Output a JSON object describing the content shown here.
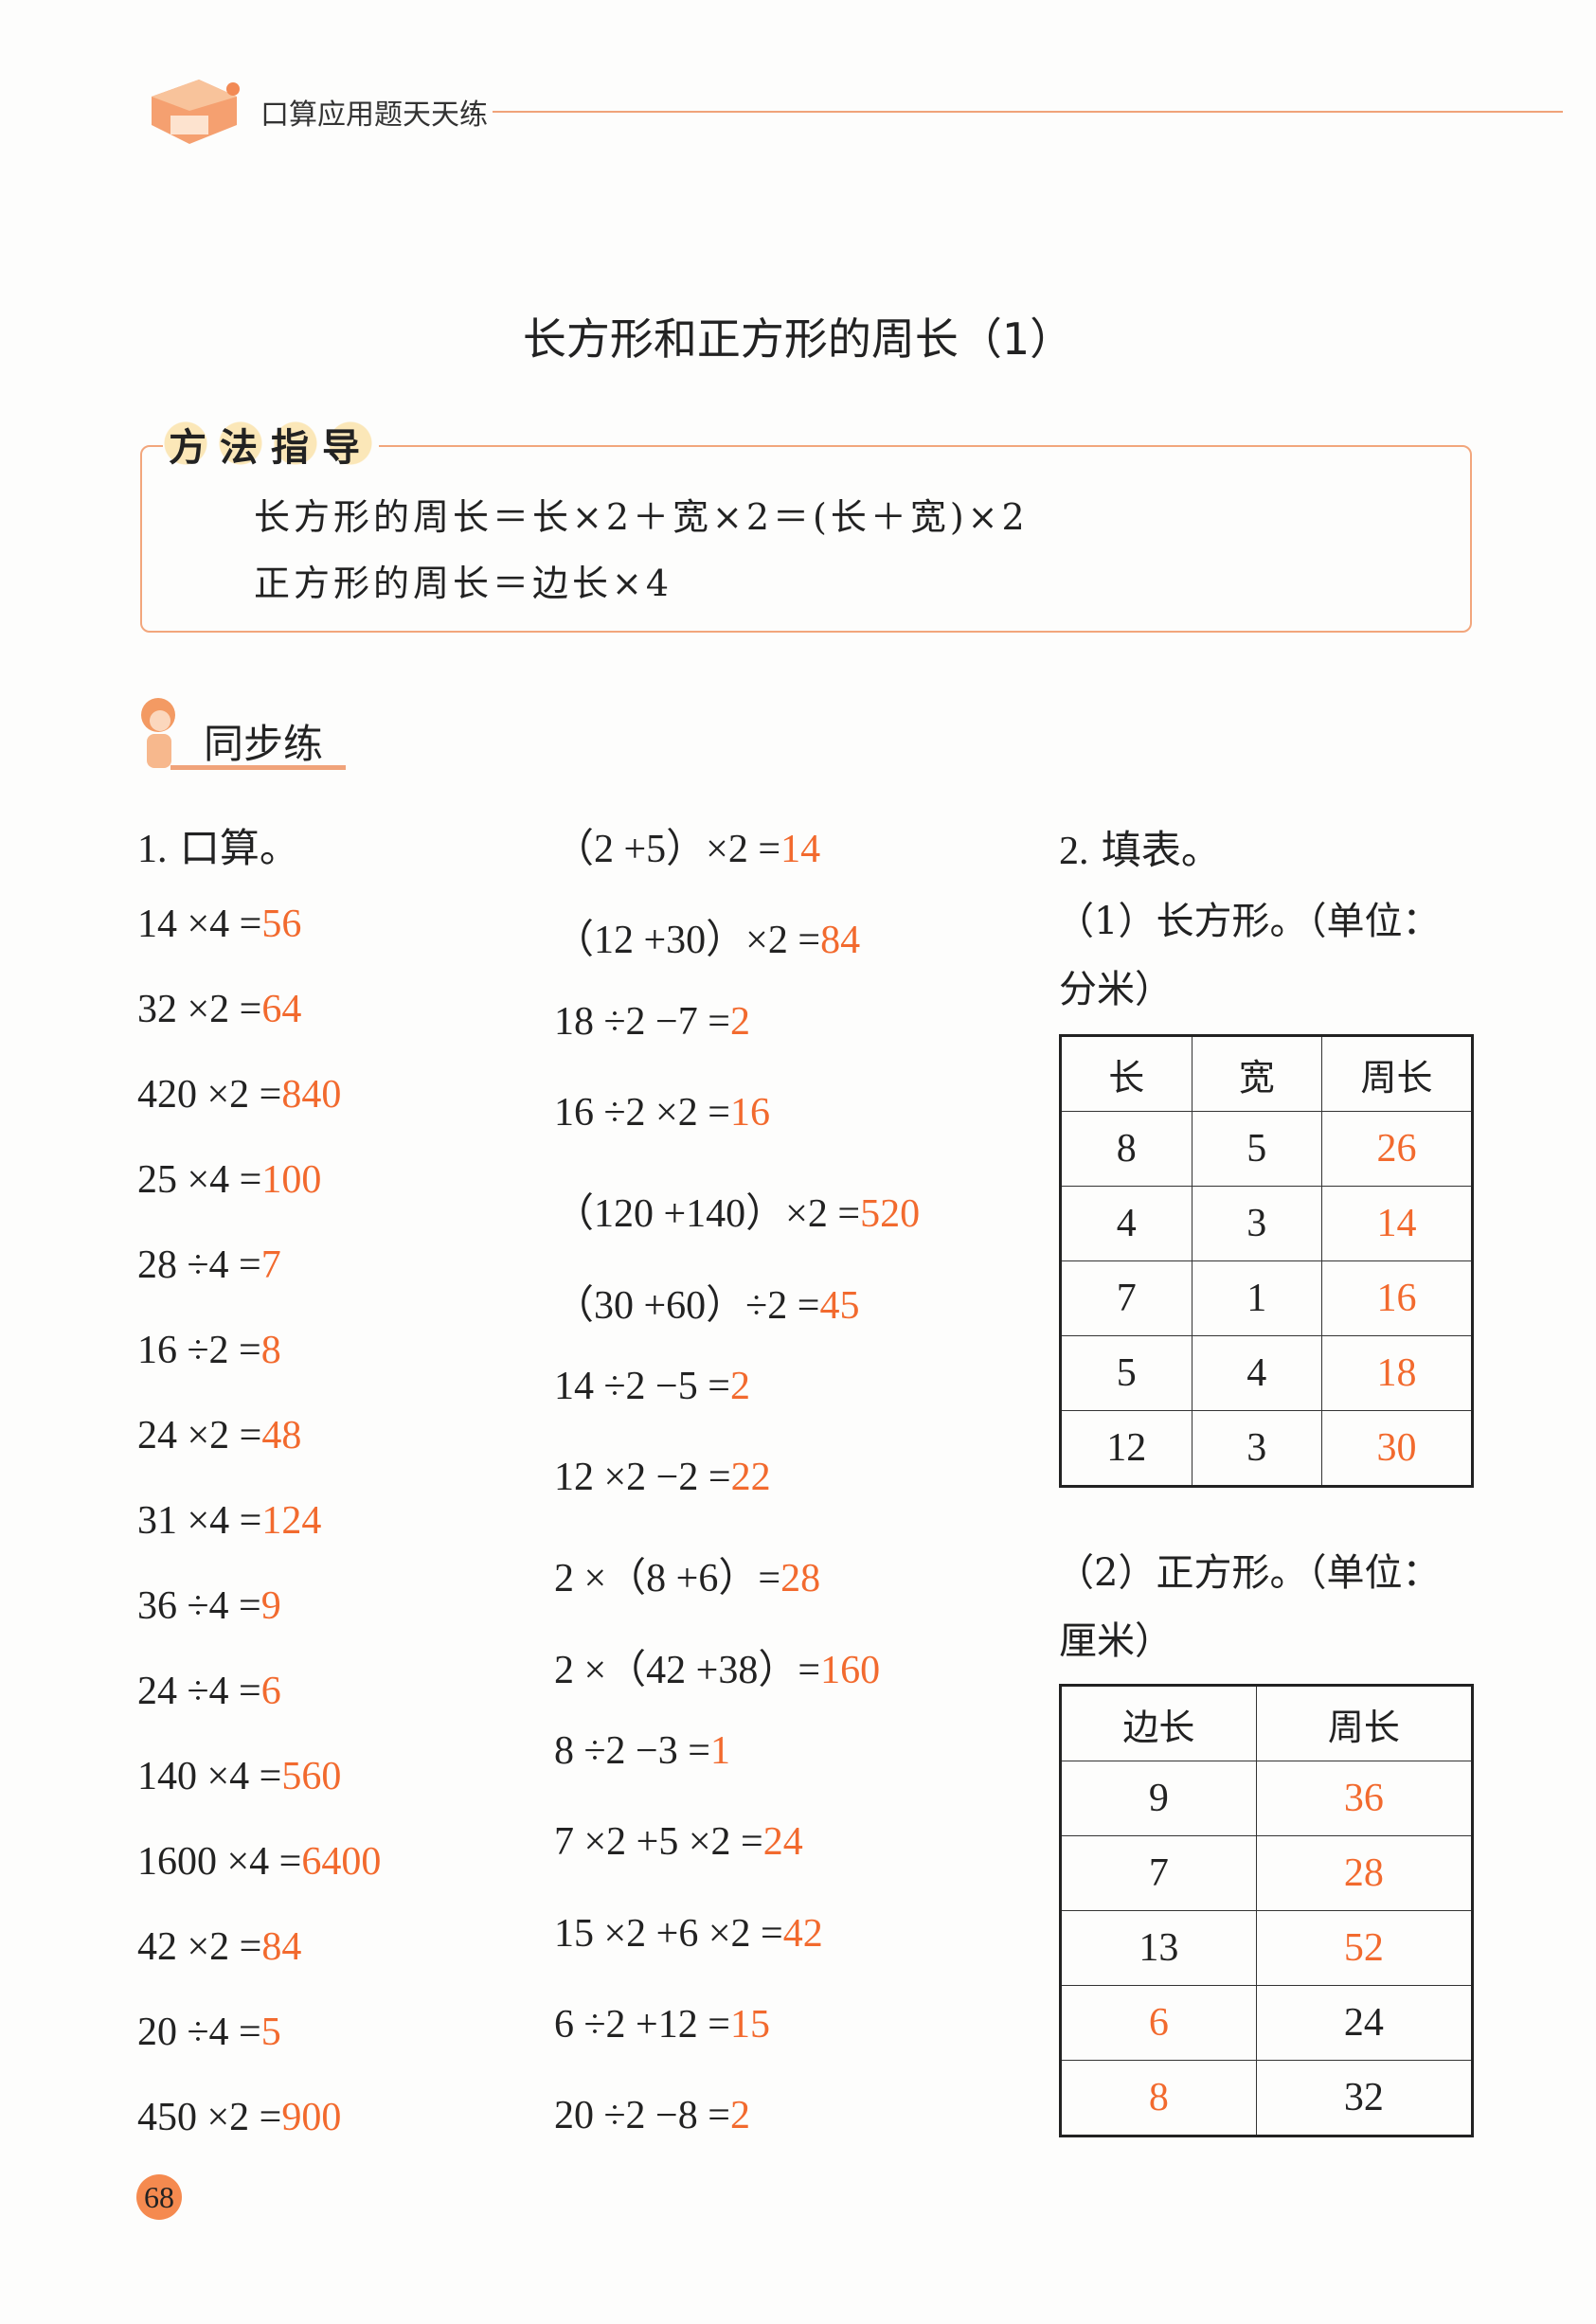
{
  "header": {
    "book_title": "口算应用题天天练"
  },
  "title": "长方形和正方形的周长（1）",
  "method": {
    "label": "方法指导",
    "formulas": [
      "长方形的周长＝长×2＋宽×2＝(长＋宽)×2",
      "正方形的周长＝边长×4"
    ]
  },
  "section": {
    "label": "同步练"
  },
  "q1": {
    "number": "1.",
    "title": "口算。",
    "col1": [
      {
        "expr": "14 ×4 =",
        "ans": "56"
      },
      {
        "expr": "32 ×2 =",
        "ans": "64"
      },
      {
        "expr": "420 ×2 =",
        "ans": "840"
      },
      {
        "expr": "25 ×4 =",
        "ans": "100"
      },
      {
        "expr": "28 ÷4 =",
        "ans": "7"
      },
      {
        "expr": "16 ÷2 =",
        "ans": "8"
      },
      {
        "expr": "24 ×2 =",
        "ans": "48"
      },
      {
        "expr": "31 ×4 =",
        "ans": "124"
      },
      {
        "expr": "36 ÷4 =",
        "ans": "9"
      },
      {
        "expr": "24 ÷4 =",
        "ans": "6"
      },
      {
        "expr": "140 ×4 =",
        "ans": "560"
      },
      {
        "expr": "1600 ×4 =",
        "ans": "6400"
      },
      {
        "expr": "42 ×2 =",
        "ans": "84"
      },
      {
        "expr": "20 ÷4 =",
        "ans": "5"
      },
      {
        "expr": "450 ×2 =",
        "ans": "900"
      }
    ],
    "col2": [
      {
        "expr": "（2 +5）×2 =",
        "ans": "14"
      },
      {
        "expr": "（12 +30）×2 =",
        "ans": "84"
      },
      {
        "expr": "18 ÷2 −7 =",
        "ans": "2"
      },
      {
        "expr": "16 ÷2 ×2 =",
        "ans": "16"
      },
      {
        "expr": "（120 +140）×2 =",
        "ans": "520"
      },
      {
        "expr": "（30 +60）÷2 =",
        "ans": "45"
      },
      {
        "expr": "14 ÷2 −5 =",
        "ans": "2"
      },
      {
        "expr": "12 ×2 −2 =",
        "ans": "22"
      },
      {
        "expr": "2 ×（8 +6）=",
        "ans": "28"
      },
      {
        "expr": "2 ×（42 +38）=",
        "ans": "160"
      },
      {
        "expr": "8 ÷2 −3 =",
        "ans": "1"
      },
      {
        "expr": "7 ×2 +5 ×2 =",
        "ans": "24"
      },
      {
        "expr": "15 ×2 +6 ×2 =",
        "ans": "42"
      },
      {
        "expr": "6 ÷2 +12 =",
        "ans": "15"
      },
      {
        "expr": "20 ÷2 −8 =",
        "ans": "2"
      }
    ]
  },
  "q2": {
    "number": "2.",
    "title": "填表。",
    "part1": {
      "caption_line1": "（1）长方形。（单位：",
      "caption_line2": "分米）",
      "headers": [
        "长",
        "宽",
        "周长"
      ],
      "rows": [
        [
          {
            "v": "8",
            "a": false
          },
          {
            "v": "5",
            "a": false
          },
          {
            "v": "26",
            "a": true
          }
        ],
        [
          {
            "v": "4",
            "a": false
          },
          {
            "v": "3",
            "a": false
          },
          {
            "v": "14",
            "a": true
          }
        ],
        [
          {
            "v": "7",
            "a": false
          },
          {
            "v": "1",
            "a": false
          },
          {
            "v": "16",
            "a": true
          }
        ],
        [
          {
            "v": "5",
            "a": false
          },
          {
            "v": "4",
            "a": false
          },
          {
            "v": "18",
            "a": true
          }
        ],
        [
          {
            "v": "12",
            "a": false
          },
          {
            "v": "3",
            "a": false
          },
          {
            "v": "30",
            "a": true
          }
        ]
      ]
    },
    "part2": {
      "caption_line1": "（2）正方形。（单位：",
      "caption_line2": "厘米）",
      "headers": [
        "边长",
        "周长"
      ],
      "rows": [
        [
          {
            "v": "9",
            "a": false
          },
          {
            "v": "36",
            "a": true
          }
        ],
        [
          {
            "v": "7",
            "a": false
          },
          {
            "v": "28",
            "a": true
          }
        ],
        [
          {
            "v": "13",
            "a": false
          },
          {
            "v": "52",
            "a": true
          }
        ],
        [
          {
            "v": "6",
            "a": true
          },
          {
            "v": "24",
            "a": false
          }
        ],
        [
          {
            "v": "8",
            "a": true
          },
          {
            "v": "32",
            "a": false
          }
        ]
      ]
    }
  },
  "page_number": "68",
  "colors": {
    "answer": "#f26a2e",
    "accent": "#f0a37a",
    "text": "#222222"
  }
}
